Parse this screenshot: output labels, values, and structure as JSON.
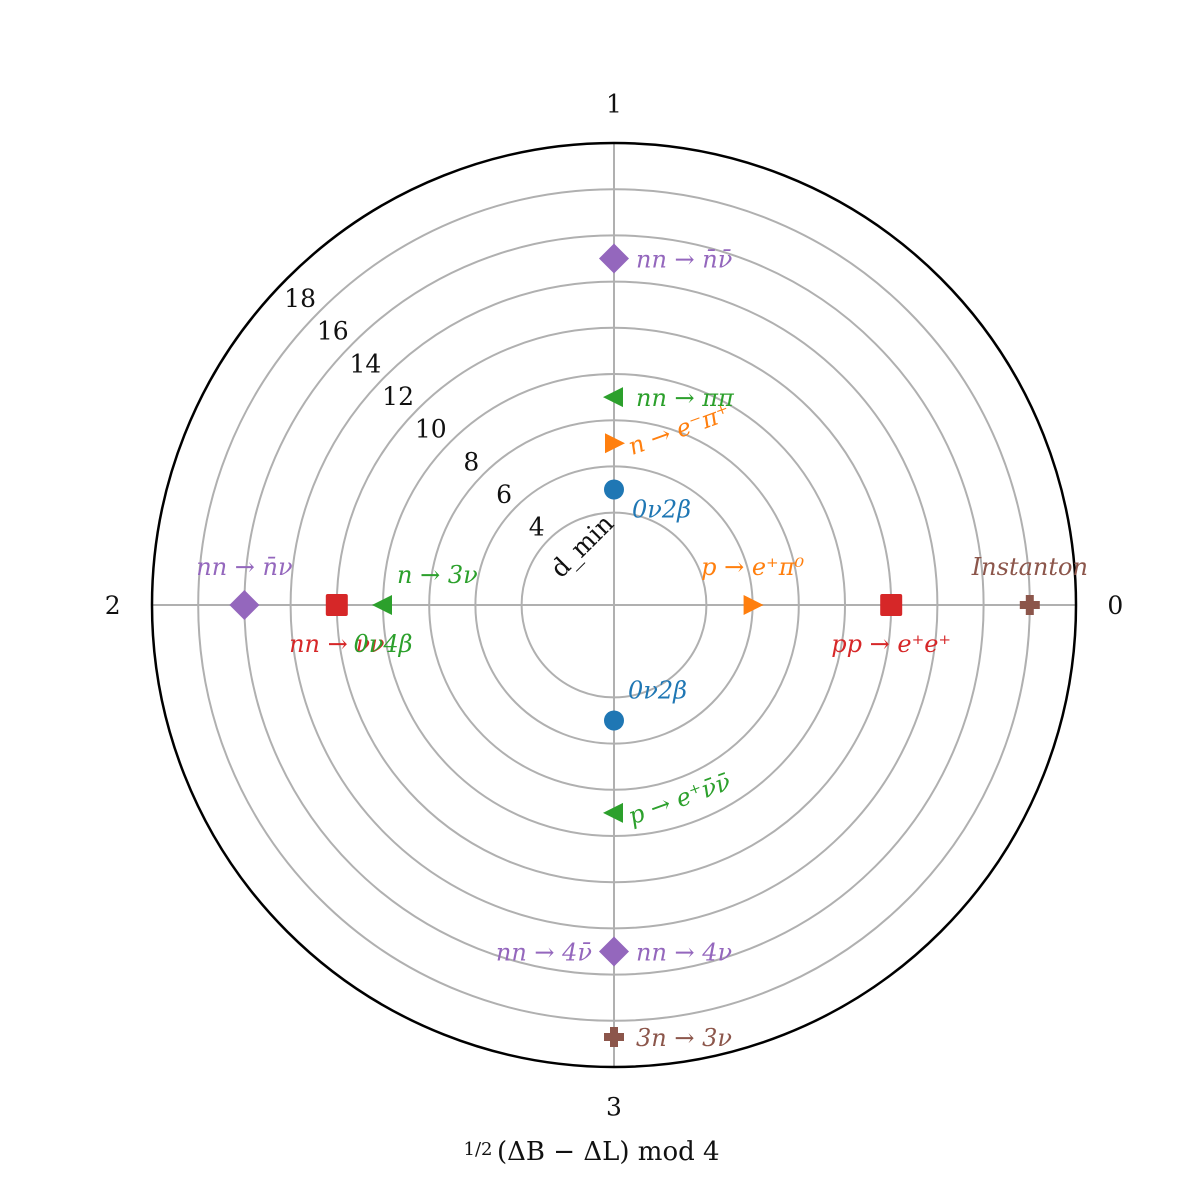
{
  "chart_data": {
    "type": "scatter",
    "projection": "polar",
    "theta_direction": "counterclockwise",
    "theta_zero": "east",
    "r_range": [
      0,
      20
    ],
    "grid": true,
    "xlabel_prefix": "1/2",
    "xlabel": "(ΔB − ΔL) mod 4",
    "rlabel": "d_min",
    "theta_ticks": [
      "0",
      "1",
      "2",
      "3"
    ],
    "r_ticks": [
      4,
      6,
      8,
      10,
      12,
      14,
      16,
      18
    ],
    "colors": {
      "d6": "#1f77b4",
      "d9": "#ff7f0e",
      "d10": "#2ca02c",
      "d12": "#d62728",
      "d15": "#9467bd",
      "d18": "#8c564b"
    },
    "series": [
      {
        "marker": "circle",
        "color": "#1f77b4",
        "points": [
          {
            "theta": 1,
            "r": 5,
            "label": "0ν2β"
          },
          {
            "theta": 3,
            "r": 5,
            "label": "0ν2β"
          }
        ]
      },
      {
        "marker": "triangle-right",
        "color": "#ff7f0e",
        "points": [
          {
            "theta": 1,
            "r": 7,
            "label": "n → e⁻π⁺"
          },
          {
            "theta": 0,
            "r": 6,
            "label": "p → e⁺π⁰"
          }
        ]
      },
      {
        "marker": "triangle-left",
        "color": "#2ca02c",
        "points": [
          {
            "theta": 1,
            "r": 9,
            "label": "nn → ππ"
          },
          {
            "theta": 2,
            "r": 10,
            "label": "n → 3ν"
          },
          {
            "theta": 3,
            "r": 9,
            "label": "p → e⁺ν̄ν̄"
          }
        ]
      },
      {
        "marker": "plus-filled",
        "color": "#d62728",
        "points": [
          {
            "theta": 2,
            "r": 12,
            "label": "nn → νν"
          },
          {
            "theta": 0,
            "r": 12,
            "label": "pp → e⁺e⁺"
          }
        ]
      },
      {
        "marker": "diamond",
        "color": "#9467bd",
        "points": [
          {
            "theta": 1,
            "r": 15,
            "label": "nn → n̄ν̄"
          },
          {
            "theta": 2,
            "r": 16,
            "label": "nn → n̄ν"
          },
          {
            "theta": 3,
            "r": 15,
            "label": "nn → 4ν̄"
          }
        ]
      },
      {
        "marker": "plus",
        "color": "#8c564b",
        "points": [
          {
            "theta": 0,
            "r": 18,
            "label": "Instanton"
          },
          {
            "theta": 3,
            "r": 18.7,
            "label": "3n → 3ν"
          }
        ]
      }
    ],
    "annotations": [
      {
        "text": "nn → n̄ν̄",
        "color": "#9467bd",
        "theta": 1,
        "r": 15,
        "anchor": "right"
      },
      {
        "text": "nn → ππ",
        "color": "#2ca02c",
        "theta": 1,
        "r": 9,
        "anchor": "right"
      },
      {
        "text": "n → e⁻π⁺",
        "color": "#ff7f0e",
        "theta": 1,
        "r": 7,
        "anchor": "right-rotated"
      },
      {
        "text": "0ν2β",
        "color": "#1f77b4",
        "theta": 1,
        "r": 5,
        "anchor": "below-right"
      },
      {
        "text": "p → e⁺π⁰",
        "color": "#ff7f0e",
        "theta": 0,
        "r": 6,
        "anchor": "above"
      },
      {
        "text": "pp → e⁺e⁺",
        "color": "#d62728",
        "theta": 0,
        "r": 12,
        "anchor": "below"
      },
      {
        "text": "Instanton",
        "color": "#8c564b",
        "theta": 0,
        "r": 18,
        "anchor": "above"
      },
      {
        "text": "nn → n̄ν",
        "color": "#9467bd",
        "theta": 2,
        "r": 16,
        "anchor": "above"
      },
      {
        "text": "n → 3ν",
        "color": "#2ca02c",
        "theta": 2,
        "r": 10,
        "anchor": "above-right"
      },
      {
        "text": "nn → νν",
        "color": "#d62728",
        "theta": 2,
        "r": 12,
        "anchor": "below"
      },
      {
        "text": "0ν4β",
        "color": "#2ca02c",
        "theta": 2,
        "r": 10,
        "anchor": "below"
      },
      {
        "text": "0ν2β",
        "color": "#1f77b4",
        "theta": 3,
        "r": 5,
        "anchor": "above-right"
      },
      {
        "text": "p → e⁺ν̄ν̄",
        "color": "#2ca02c",
        "theta": 3,
        "r": 9,
        "anchor": "right-rotated"
      },
      {
        "text": "nn → 4ν̄",
        "color": "#9467bd",
        "theta": 3,
        "r": 15,
        "anchor": "left"
      },
      {
        "text": "nn → 4ν",
        "color": "#9467bd",
        "theta": 3,
        "r": 15,
        "anchor": "right"
      },
      {
        "text": "3n → 3ν",
        "color": "#8c564b",
        "theta": 3,
        "r": 18.7,
        "anchor": "right"
      }
    ]
  }
}
